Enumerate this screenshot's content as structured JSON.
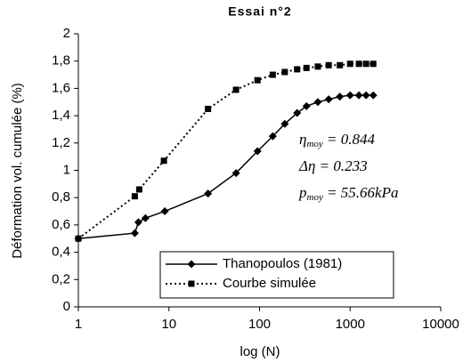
{
  "chart_data": {
    "type": "line",
    "title": "Essai n°2",
    "xlabel": "log (N)",
    "ylabel": "Déformation vol. cumulée (%)",
    "xscale": "log",
    "xlim": [
      1,
      10000
    ],
    "xticks": [
      1,
      10,
      100,
      1000,
      10000
    ],
    "ylim": [
      0,
      2
    ],
    "yticks": [
      0,
      {
        "value": 0.2,
        "label": "0,2"
      },
      {
        "value": 0.4,
        "label": "0,4"
      },
      {
        "value": 0.6,
        "label": "0,6"
      },
      {
        "value": 0.8,
        "label": "0,8"
      },
      1,
      {
        "value": 1.2,
        "label": "1,2"
      },
      {
        "value": 1.4,
        "label": "1,4"
      },
      {
        "value": 1.6,
        "label": "1,6"
      },
      {
        "value": 1.8,
        "label": "1,8"
      },
      2
    ],
    "grid": false,
    "legend": "lower center",
    "series": [
      {
        "name": "Thanopoulos (1981)",
        "color": "#000000",
        "line": "solid",
        "marker": "diamond",
        "x": [
          1,
          4.2,
          4.6,
          5.5,
          9,
          27,
          55,
          95,
          140,
          190,
          260,
          330,
          440,
          580,
          770,
          1000,
          1250,
          1500,
          1800
        ],
        "values": [
          0.5,
          0.54,
          0.62,
          0.65,
          0.7,
          0.83,
          0.98,
          1.14,
          1.25,
          1.34,
          1.42,
          1.47,
          1.5,
          1.52,
          1.54,
          1.55,
          1.55,
          1.55,
          1.55
        ]
      },
      {
        "name": "Courbe simulée",
        "color": "#000000",
        "line": "dotted",
        "marker": "square",
        "x": [
          1,
          4.2,
          4.7,
          8.8,
          27,
          55,
          95,
          140,
          190,
          260,
          330,
          440,
          580,
          770,
          1000,
          1250,
          1500,
          1800
        ],
        "values": [
          0.5,
          0.81,
          0.86,
          1.07,
          1.45,
          1.59,
          1.66,
          1.7,
          1.72,
          1.74,
          1.75,
          1.76,
          1.77,
          1.77,
          1.78,
          1.78,
          1.78,
          1.78
        ]
      }
    ],
    "annotations": [
      {
        "symbol": "η",
        "sub": "moy",
        "text": " = 0.844"
      },
      {
        "symbol": "Δη",
        "text": " = 0.233"
      },
      {
        "symbol": "p",
        "sub": "moy",
        "text": " = 55.66kPa"
      }
    ]
  }
}
